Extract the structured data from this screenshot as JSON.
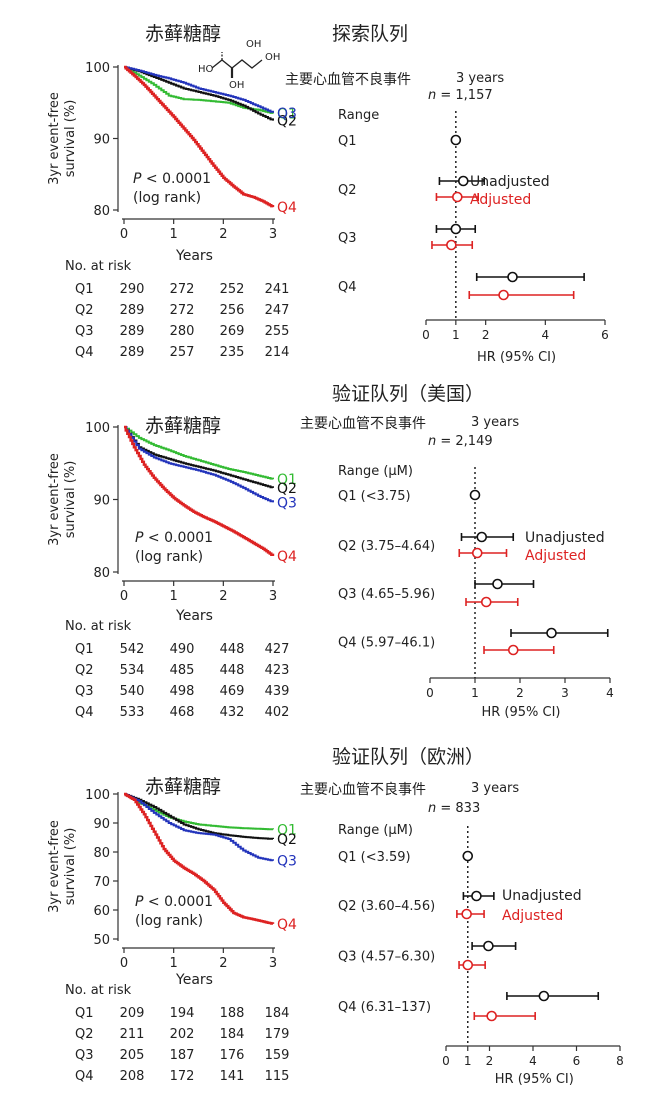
{
  "compound_name": "赤藓糖醇",
  "structure": {
    "labels": [
      "HO",
      "OH",
      "OH",
      "OH"
    ]
  },
  "chart_data": [
    {
      "type": "line",
      "panel": "km",
      "title": "赤藓糖醇",
      "section_title": "探索队列",
      "ylabel": [
        "3yr event-free",
        "survival (%)"
      ],
      "xlabel": "Years",
      "xlim": [
        0,
        3
      ],
      "ylim": [
        80,
        100
      ],
      "xticks": [
        0,
        1,
        2,
        3
      ],
      "yticks": [
        80,
        90,
        100
      ],
      "annotation": [
        "P < 0.0001",
        "(log rank)"
      ],
      "series": [
        {
          "name": "Q1",
          "color": "#33bb33",
          "x": [
            0,
            0.3,
            0.6,
            0.9,
            1.2,
            1.5,
            1.8,
            2.1,
            2.4,
            2.7,
            3.0
          ],
          "y": [
            100,
            98.8,
            97.5,
            96.0,
            95.5,
            95.4,
            95.2,
            95.0,
            94.3,
            94.0,
            93.5
          ]
        },
        {
          "name": "Q2",
          "color": "#111111",
          "x": [
            0,
            0.3,
            0.6,
            0.9,
            1.2,
            1.5,
            1.8,
            2.1,
            2.4,
            2.7,
            3.0
          ],
          "y": [
            100,
            99.4,
            98.6,
            97.8,
            97.0,
            96.5,
            96.0,
            95.4,
            94.6,
            93.5,
            92.5
          ]
        },
        {
          "name": "Q3",
          "color": "#2233bb",
          "x": [
            0,
            0.3,
            0.6,
            0.9,
            1.2,
            1.5,
            1.8,
            2.1,
            2.4,
            2.7,
            3.0
          ],
          "y": [
            100,
            99.5,
            98.9,
            98.4,
            97.8,
            97.0,
            96.5,
            96.0,
            95.4,
            94.5,
            93.6
          ]
        },
        {
          "name": "Q4",
          "color": "#dd2222",
          "x": [
            0,
            0.2,
            0.4,
            0.6,
            0.8,
            1.0,
            1.2,
            1.4,
            1.6,
            1.8,
            2.0,
            2.2,
            2.4,
            2.6,
            2.8,
            3.0
          ],
          "y": [
            100,
            98.8,
            97.5,
            96.0,
            94.5,
            93.0,
            91.4,
            89.8,
            88.0,
            86.2,
            84.5,
            83.3,
            82.2,
            81.8,
            81.2,
            80.4
          ]
        }
      ],
      "risk_table": {
        "header": "No. at risk",
        "rows": [
          {
            "label": "Q1",
            "values": [
              "290",
              "272",
              "252",
              "241"
            ]
          },
          {
            "label": "Q2",
            "values": [
              "289",
              "272",
              "256",
              "247"
            ]
          },
          {
            "label": "Q3",
            "values": [
              "289",
              "280",
              "269",
              "255"
            ]
          },
          {
            "label": "Q4",
            "values": [
              "289",
              "257",
              "235",
              "214"
            ]
          }
        ]
      }
    },
    {
      "type": "scatter",
      "panel": "forest",
      "title": "主要心血管不良事件",
      "title_suffix": "3 years",
      "n_text": "n = 1,157",
      "range_header": "Range",
      "xlabel": "HR (95% CI)",
      "xlim": [
        0,
        6
      ],
      "xticks": [
        0,
        1,
        2,
        4,
        6
      ],
      "ref_line": 1,
      "legend": [
        "Unadjusted",
        "Adjusted"
      ],
      "rows": [
        {
          "label": "Q1",
          "unadjusted": {
            "hr": 1,
            "lo": 1,
            "hi": 1
          },
          "adjusted": null
        },
        {
          "label": "Q2",
          "unadjusted": {
            "hr": 1.25,
            "lo": 0.45,
            "hi": 1.95
          },
          "adjusted": {
            "hr": 1.05,
            "lo": 0.35,
            "hi": 1.75
          }
        },
        {
          "label": "Q3",
          "unadjusted": {
            "hr": 1.0,
            "lo": 0.35,
            "hi": 1.65
          },
          "adjusted": {
            "hr": 0.85,
            "lo": 0.2,
            "hi": 1.55
          }
        },
        {
          "label": "Q4",
          "unadjusted": {
            "hr": 2.9,
            "lo": 1.7,
            "hi": 5.3
          },
          "adjusted": {
            "hr": 2.6,
            "lo": 1.45,
            "hi": 4.95
          }
        }
      ]
    },
    {
      "type": "line",
      "panel": "km",
      "title": "赤藓糖醇",
      "section_title": "验证队列（美国）",
      "ylabel": [
        "3yr event-free",
        "survival (%)"
      ],
      "xlabel": "Years",
      "xlim": [
        0,
        3
      ],
      "ylim": [
        80,
        100
      ],
      "xticks": [
        0,
        1,
        2,
        3
      ],
      "yticks": [
        80,
        90,
        100
      ],
      "annotation": [
        "P < 0.0001",
        "(log rank)"
      ],
      "series": [
        {
          "name": "Q1",
          "color": "#33bb33",
          "x": [
            0,
            0.3,
            0.6,
            0.9,
            1.2,
            1.5,
            1.8,
            2.1,
            2.4,
            2.7,
            3.0
          ],
          "y": [
            100,
            98.5,
            97.5,
            96.8,
            96.0,
            95.4,
            94.8,
            94.2,
            93.8,
            93.3,
            92.8
          ]
        },
        {
          "name": "Q2",
          "color": "#111111",
          "x": [
            0,
            0.3,
            0.6,
            0.9,
            1.2,
            1.5,
            1.8,
            2.1,
            2.4,
            2.7,
            3.0
          ],
          "y": [
            100,
            97.2,
            96.2,
            95.6,
            95.0,
            94.5,
            94.0,
            93.4,
            92.8,
            92.2,
            91.6
          ]
        },
        {
          "name": "Q3",
          "color": "#2233bb",
          "x": [
            0,
            0.3,
            0.6,
            0.9,
            1.2,
            1.5,
            1.8,
            2.1,
            2.4,
            2.7,
            3.0
          ],
          "y": [
            100,
            97.0,
            95.8,
            95.0,
            94.5,
            94.0,
            93.4,
            92.6,
            91.6,
            90.5,
            89.6
          ]
        },
        {
          "name": "Q4",
          "color": "#dd2222",
          "x": [
            0,
            0.2,
            0.4,
            0.6,
            0.8,
            1.0,
            1.2,
            1.4,
            1.6,
            1.8,
            2.0,
            2.2,
            2.4,
            2.6,
            2.8,
            3.0
          ],
          "y": [
            100,
            97.2,
            94.8,
            93.0,
            91.5,
            90.2,
            89.2,
            88.3,
            87.6,
            87.0,
            86.3,
            85.6,
            84.8,
            84.0,
            83.2,
            82.2
          ]
        }
      ],
      "risk_table": {
        "header": "No. at risk",
        "rows": [
          {
            "label": "Q1",
            "values": [
              "542",
              "490",
              "448",
              "427"
            ]
          },
          {
            "label": "Q2",
            "values": [
              "534",
              "485",
              "448",
              "423"
            ]
          },
          {
            "label": "Q3",
            "values": [
              "540",
              "498",
              "469",
              "439"
            ]
          },
          {
            "label": "Q4",
            "values": [
              "533",
              "468",
              "432",
              "402"
            ]
          }
        ]
      }
    },
    {
      "type": "scatter",
      "panel": "forest",
      "title": "主要心血管不良事件",
      "title_suffix": "3 years",
      "n_text": "n = 2,149",
      "range_header": "Range (μM)",
      "xlabel": "HR (95% CI)",
      "xlim": [
        0,
        4
      ],
      "xticks": [
        0,
        1,
        2,
        3,
        4
      ],
      "ref_line": 1,
      "legend": [
        "Unadjusted",
        "Adjusted"
      ],
      "rows": [
        {
          "label": "Q1 (<3.75)",
          "unadjusted": {
            "hr": 1,
            "lo": 1,
            "hi": 1
          },
          "adjusted": null
        },
        {
          "label": "Q2 (3.75–4.64)",
          "unadjusted": {
            "hr": 1.15,
            "lo": 0.7,
            "hi": 1.85
          },
          "adjusted": {
            "hr": 1.05,
            "lo": 0.65,
            "hi": 1.7
          }
        },
        {
          "label": "Q3 (4.65–5.96)",
          "unadjusted": {
            "hr": 1.5,
            "lo": 1.0,
            "hi": 2.3
          },
          "adjusted": {
            "hr": 1.25,
            "lo": 0.8,
            "hi": 1.95
          }
        },
        {
          "label": "Q4 (5.97–46.1)",
          "unadjusted": {
            "hr": 2.7,
            "lo": 1.8,
            "hi": 3.95
          },
          "adjusted": {
            "hr": 1.85,
            "lo": 1.2,
            "hi": 2.75
          }
        }
      ]
    },
    {
      "type": "line",
      "panel": "km",
      "title": "赤藓糖醇",
      "section_title": "验证队列（欧洲）",
      "ylabel": [
        "3yr event-free",
        "survival (%)"
      ],
      "xlabel": "Years",
      "xlim": [
        0,
        3
      ],
      "ylim": [
        50,
        100
      ],
      "xticks": [
        0,
        1,
        2,
        3
      ],
      "yticks": [
        50,
        60,
        70,
        80,
        90,
        100
      ],
      "annotation": [
        "P < 0.0001",
        "(log rank)"
      ],
      "series": [
        {
          "name": "Q1",
          "color": "#33bb33",
          "x": [
            0,
            0.3,
            0.6,
            0.9,
            1.2,
            1.5,
            1.8,
            2.1,
            2.4,
            2.7,
            3.0
          ],
          "y": [
            100,
            97.0,
            94.5,
            92.0,
            90.5,
            89.5,
            89.0,
            88.5,
            88.2,
            88.0,
            87.8
          ]
        },
        {
          "name": "Q2",
          "color": "#111111",
          "x": [
            0,
            0.3,
            0.6,
            0.9,
            1.2,
            1.5,
            1.8,
            2.1,
            2.4,
            2.7,
            3.0
          ],
          "y": [
            100,
            98.0,
            95.5,
            92.5,
            89.5,
            87.8,
            86.5,
            85.8,
            85.2,
            84.8,
            84.5
          ]
        },
        {
          "name": "Q3",
          "color": "#2233bb",
          "x": [
            0,
            0.3,
            0.6,
            0.9,
            1.2,
            1.5,
            1.8,
            2.1,
            2.4,
            2.7,
            3.0
          ],
          "y": [
            100,
            97.5,
            93.5,
            90.0,
            87.5,
            86.5,
            86.0,
            84.5,
            80.5,
            78.0,
            77.0
          ]
        },
        {
          "name": "Q4",
          "color": "#dd2222",
          "x": [
            0,
            0.2,
            0.4,
            0.6,
            0.8,
            1.0,
            1.2,
            1.4,
            1.6,
            1.8,
            2.0,
            2.2,
            2.4,
            2.6,
            2.8,
            3.0
          ],
          "y": [
            100,
            98.0,
            93.0,
            87.0,
            81.0,
            77.0,
            74.5,
            72.5,
            70.0,
            67.0,
            62.5,
            59.0,
            57.5,
            56.8,
            56.0,
            55.2
          ]
        }
      ],
      "risk_table": {
        "header": "No. at risk",
        "rows": [
          {
            "label": "Q1",
            "values": [
              "209",
              "194",
              "188",
              "184"
            ]
          },
          {
            "label": "Q2",
            "values": [
              "211",
              "202",
              "184",
              "179"
            ]
          },
          {
            "label": "Q3",
            "values": [
              "205",
              "187",
              "176",
              "159"
            ]
          },
          {
            "label": "Q4",
            "values": [
              "208",
              "172",
              "141",
              "115"
            ]
          }
        ]
      }
    },
    {
      "type": "scatter",
      "panel": "forest",
      "title": "主要心血管不良事件",
      "title_suffix": "3 years",
      "n_text": "n = 833",
      "range_header": "Range (μM)",
      "xlabel": "HR (95% CI)",
      "xlim": [
        0,
        8
      ],
      "xticks": [
        0,
        1,
        2,
        4,
        6,
        8
      ],
      "ref_line": 1,
      "legend": [
        "Unadjusted",
        "Adjusted"
      ],
      "rows": [
        {
          "label": "Q1 (<3.59)",
          "unadjusted": {
            "hr": 1,
            "lo": 1,
            "hi": 1
          },
          "adjusted": null
        },
        {
          "label": "Q2 (3.60–4.56)",
          "unadjusted": {
            "hr": 1.4,
            "lo": 0.8,
            "hi": 2.2
          },
          "adjusted": {
            "hr": 0.95,
            "lo": 0.5,
            "hi": 1.75
          }
        },
        {
          "label": "Q3 (4.57–6.30)",
          "unadjusted": {
            "hr": 1.95,
            "lo": 1.2,
            "hi": 3.2
          },
          "adjusted": {
            "hr": 1.0,
            "lo": 0.6,
            "hi": 1.8
          }
        },
        {
          "label": "Q4 (6.31–137)",
          "unadjusted": {
            "hr": 4.5,
            "lo": 2.8,
            "hi": 7.0
          },
          "adjusted": {
            "hr": 2.1,
            "lo": 1.3,
            "hi": 4.1
          }
        }
      ]
    }
  ]
}
